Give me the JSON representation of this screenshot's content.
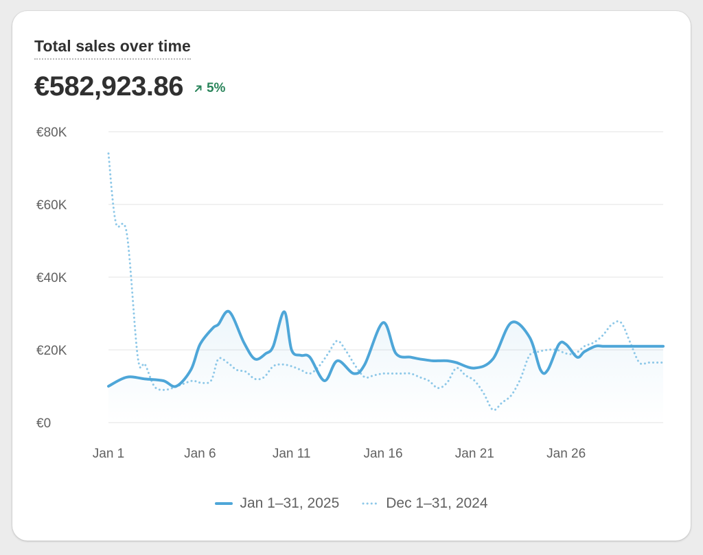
{
  "card": {
    "title": "Total sales over time",
    "total": "€582,923.86",
    "change_text": "5%",
    "change_icon": "arrow-up-right-icon",
    "change_color": "#29845a"
  },
  "chart_data": {
    "type": "area",
    "x_labels": [
      "Jan 1",
      "Jan 6",
      "Jan 11",
      "Jan 16",
      "Jan 21",
      "Jan 26"
    ],
    "x_label_days": [
      1,
      6,
      11,
      16,
      21,
      26
    ],
    "y_ticks": [
      "€0",
      "€20K",
      "€40K",
      "€60K",
      "€80K"
    ],
    "y_tick_values": [
      0,
      20000,
      40000,
      60000,
      80000
    ],
    "ylim": [
      0,
      80000
    ],
    "xlim": [
      1,
      31.3
    ],
    "grid": true,
    "legend_position": "bottom",
    "series": [
      {
        "name": "Jan 1–31, 2025",
        "style": "solid",
        "color": "#4ea6d8",
        "x": [
          1,
          2,
          3,
          4,
          4.7,
          5.5,
          6,
          6.7,
          7,
          7.6,
          8.4,
          9,
          9.6,
          10,
          10.6,
          11,
          11.5,
          12,
          12.8,
          13.5,
          14.4,
          15,
          16,
          16.7,
          17.5,
          18,
          18.7,
          19,
          19.5,
          20,
          21,
          22,
          23,
          24,
          24.6,
          25,
          25.6,
          26,
          26.6,
          27,
          27.6,
          28,
          28.4,
          29,
          29.6,
          30.4,
          31,
          31.3
        ],
        "values": [
          10000,
          12500,
          12000,
          11500,
          10000,
          14500,
          21500,
          26000,
          27000,
          30500,
          22000,
          17500,
          19000,
          21000,
          30500,
          20000,
          18500,
          18000,
          11500,
          17000,
          13500,
          16000,
          27500,
          19000,
          18000,
          17500,
          17000,
          17000,
          17000,
          16500,
          15000,
          17500,
          27500,
          23500,
          14500,
          14500,
          21500,
          21500,
          18000,
          19500,
          21000,
          21000,
          21000,
          21000,
          21000,
          21000,
          21000,
          21000
        ]
      },
      {
        "name": "Dec 1–31, 2024",
        "style": "dotted",
        "color": "#8ec8e8",
        "x": [
          1,
          1.4,
          2,
          2.6,
          3,
          3.5,
          4,
          4.5,
          5,
          5.6,
          6,
          6.6,
          7,
          7.5,
          8,
          8.5,
          9,
          9.5,
          10,
          10.5,
          11,
          11.5,
          12,
          12.5,
          13,
          13.5,
          14,
          14.5,
          15,
          15.5,
          16,
          16.5,
          17,
          17.5,
          18,
          18.5,
          19,
          19.5,
          20,
          20.5,
          21,
          21.5,
          22,
          22.5,
          23,
          23.5,
          24,
          24.5,
          25,
          25.5,
          26,
          26.5,
          27,
          27.5,
          28,
          28.5,
          29,
          29.5,
          30,
          30.5,
          31,
          31.3
        ],
        "values": [
          74000,
          55000,
          52000,
          18000,
          16000,
          10000,
          9000,
          9500,
          10500,
          11500,
          11000,
          11500,
          17500,
          16500,
          14500,
          14000,
          12000,
          12500,
          15500,
          16000,
          15500,
          14500,
          13500,
          15500,
          19000,
          22500,
          19500,
          15500,
          12500,
          13000,
          13500,
          13500,
          13500,
          13500,
          12500,
          11500,
          9500,
          11000,
          15000,
          13000,
          11500,
          8000,
          3500,
          5500,
          7500,
          12000,
          18500,
          19500,
          20000,
          20000,
          19000,
          19000,
          21000,
          22000,
          24000,
          27000,
          27500,
          22000,
          16500,
          16500,
          16500,
          16500
        ]
      }
    ]
  },
  "legend": [
    {
      "label": "Jan 1–31, 2025",
      "style": "solid"
    },
    {
      "label": "Dec 1–31, 2024",
      "style": "dotted"
    }
  ]
}
